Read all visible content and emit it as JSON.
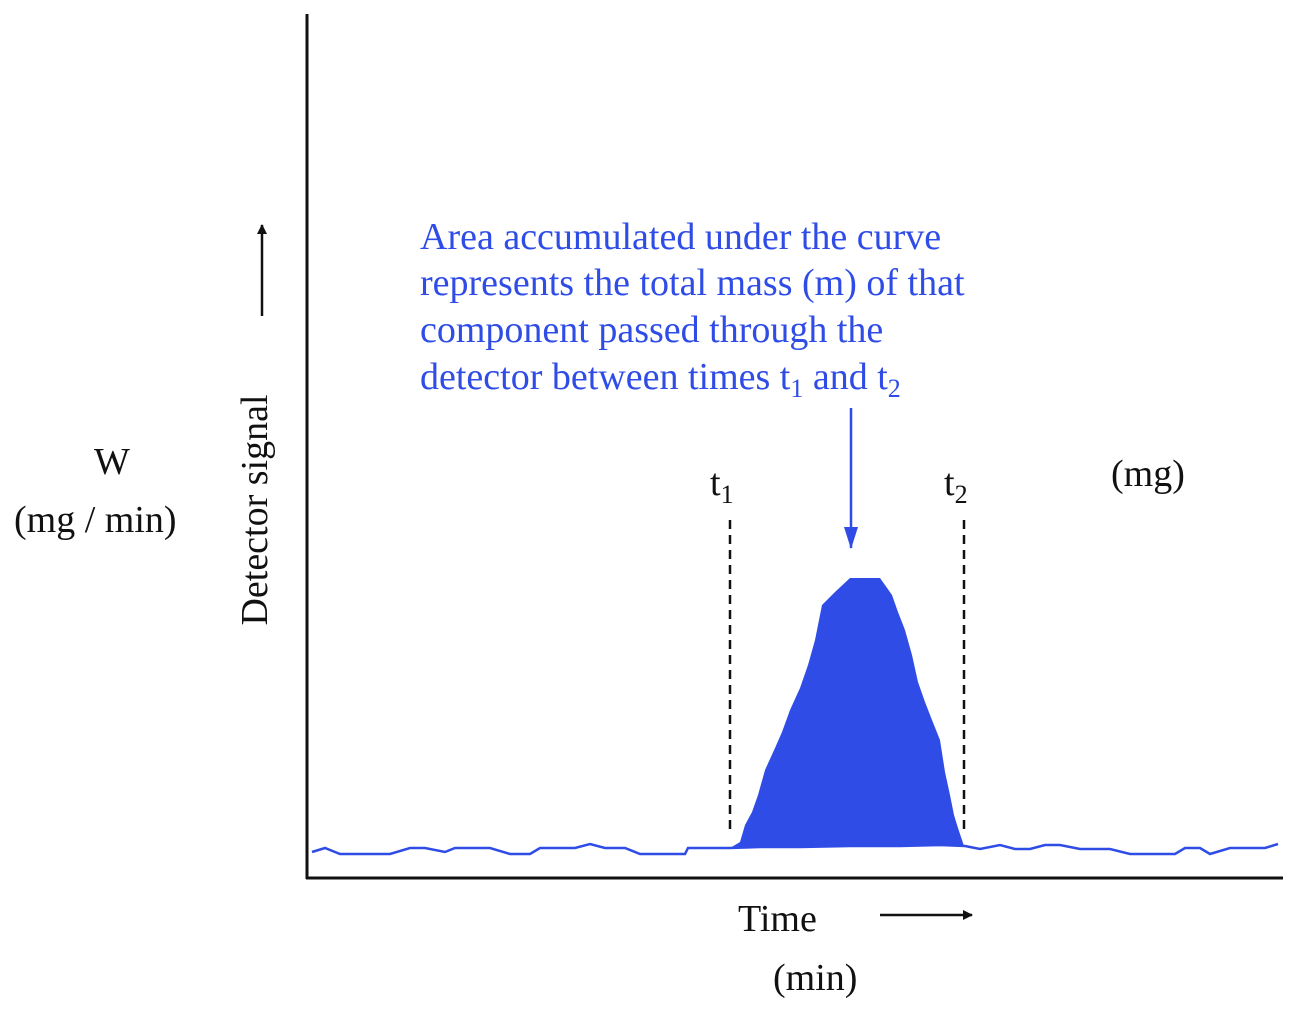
{
  "colors": {
    "accent": "#2f4de6",
    "axis": "#111111",
    "background": "#ffffff"
  },
  "labels": {
    "w_symbol": "W",
    "w_unit": "(mg / min)",
    "detector_signal": "Detector signal",
    "time": "Time",
    "time_unit": "(min)",
    "mg": "(mg)",
    "t1_base": "t",
    "t1_sub": "1",
    "t2_base": "t",
    "t2_sub": "2"
  },
  "annotation": {
    "line1": "Area accumulated under the curve",
    "line2": "represents the total mass (m) of that",
    "line3": "component passed through the",
    "line4_prefix": "detector between times t",
    "line4_sub1": "1",
    "line4_mid": " and t",
    "line4_sub2": "2"
  },
  "chart_data": {
    "type": "area",
    "x_arrow": "right",
    "y_arrow": "up",
    "markers": [
      {
        "name": "t1",
        "x": 730
      },
      {
        "name": "t2",
        "x": 964
      }
    ],
    "baseline": [
      [
        312,
        852
      ],
      [
        325,
        848
      ],
      [
        340,
        854
      ],
      [
        390,
        854
      ],
      [
        410,
        848
      ],
      [
        425,
        848
      ],
      [
        445,
        852
      ],
      [
        455,
        848
      ],
      [
        490,
        848
      ],
      [
        510,
        854
      ],
      [
        530,
        854
      ],
      [
        540,
        848
      ],
      [
        575,
        848
      ],
      [
        590,
        844
      ],
      [
        605,
        848
      ],
      [
        625,
        848
      ],
      [
        640,
        854
      ],
      [
        685,
        854
      ],
      [
        688,
        848
      ],
      [
        730,
        848
      ],
      [
        760,
        847
      ],
      [
        800,
        847
      ],
      [
        850,
        846
      ],
      [
        900,
        846
      ],
      [
        940,
        845
      ],
      [
        965,
        846
      ],
      [
        980,
        849
      ],
      [
        1000,
        845
      ],
      [
        1015,
        849
      ],
      [
        1030,
        849
      ],
      [
        1045,
        845
      ],
      [
        1060,
        845
      ],
      [
        1080,
        849
      ],
      [
        1110,
        849
      ],
      [
        1130,
        854
      ],
      [
        1175,
        854
      ],
      [
        1185,
        848
      ],
      [
        1200,
        848
      ],
      [
        1210,
        854
      ],
      [
        1230,
        848
      ],
      [
        1265,
        848
      ],
      [
        1278,
        844
      ]
    ],
    "peak": [
      [
        730,
        848
      ],
      [
        740,
        842
      ],
      [
        745,
        825
      ],
      [
        752,
        812
      ],
      [
        758,
        795
      ],
      [
        765,
        770
      ],
      [
        775,
        748
      ],
      [
        782,
        732
      ],
      [
        790,
        710
      ],
      [
        800,
        688
      ],
      [
        808,
        665
      ],
      [
        815,
        640
      ],
      [
        822,
        605
      ],
      [
        835,
        592
      ],
      [
        850,
        578
      ],
      [
        880,
        578
      ],
      [
        892,
        595
      ],
      [
        898,
        612
      ],
      [
        905,
        630
      ],
      [
        912,
        655
      ],
      [
        918,
        682
      ],
      [
        925,
        702
      ],
      [
        932,
        720
      ],
      [
        940,
        740
      ],
      [
        945,
        772
      ],
      [
        950,
        795
      ],
      [
        954,
        815
      ],
      [
        958,
        828
      ],
      [
        962,
        840
      ],
      [
        964,
        846
      ]
    ]
  }
}
